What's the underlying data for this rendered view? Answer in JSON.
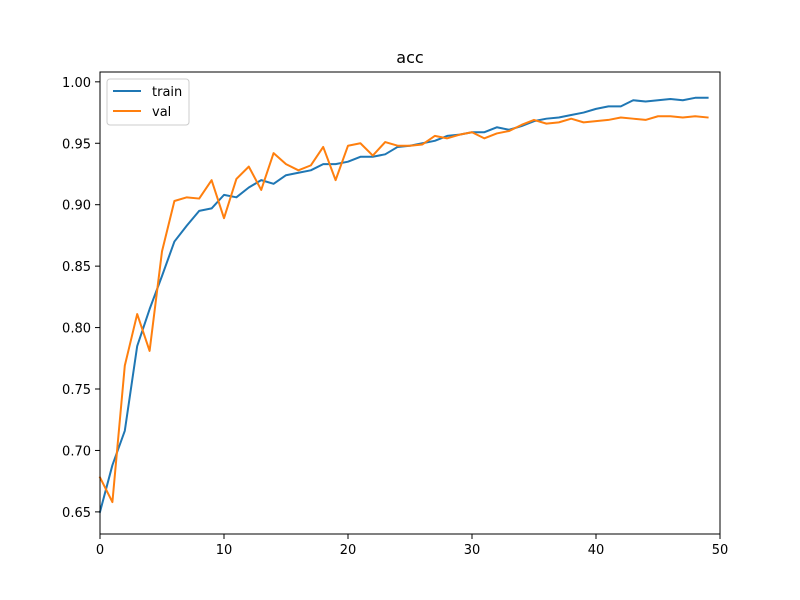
{
  "chart_data": {
    "type": "line",
    "title": "acc",
    "xlabel": "",
    "ylabel": "",
    "xlim": [
      0,
      50
    ],
    "ylim": [
      0.632,
      1.008
    ],
    "xticks": [
      0,
      10,
      20,
      30,
      40,
      50
    ],
    "xtick_labels": [
      "0",
      "10",
      "20",
      "30",
      "40",
      "50"
    ],
    "yticks": [
      0.65,
      0.7,
      0.75,
      0.8,
      0.85,
      0.9,
      0.95,
      1.0
    ],
    "ytick_labels": [
      "0.65",
      "0.70",
      "0.75",
      "0.80",
      "0.85",
      "0.90",
      "0.95",
      "1.00"
    ],
    "grid": false,
    "legend_position": "top-left",
    "x": [
      0,
      1,
      2,
      3,
      4,
      5,
      6,
      7,
      8,
      9,
      10,
      11,
      12,
      13,
      14,
      15,
      16,
      17,
      18,
      19,
      20,
      21,
      22,
      23,
      24,
      25,
      26,
      27,
      28,
      29,
      30,
      31,
      32,
      33,
      34,
      35,
      36,
      37,
      38,
      39,
      40,
      41,
      42,
      43,
      44,
      45,
      46,
      47,
      48,
      49
    ],
    "series": [
      {
        "name": "train",
        "color": "#1f77b4",
        "values": [
          0.65,
          0.688,
          0.716,
          0.785,
          0.815,
          0.842,
          0.87,
          0.883,
          0.895,
          0.897,
          0.908,
          0.906,
          0.914,
          0.92,
          0.917,
          0.924,
          0.926,
          0.928,
          0.933,
          0.933,
          0.935,
          0.939,
          0.939,
          0.941,
          0.947,
          0.948,
          0.95,
          0.952,
          0.956,
          0.957,
          0.959,
          0.959,
          0.963,
          0.961,
          0.964,
          0.968,
          0.97,
          0.971,
          0.973,
          0.975,
          0.978,
          0.98,
          0.98,
          0.985,
          0.984,
          0.985,
          0.986,
          0.985,
          0.987,
          0.987
        ]
      },
      {
        "name": "val",
        "color": "#ff7f0e",
        "values": [
          0.678,
          0.658,
          0.769,
          0.811,
          0.781,
          0.862,
          0.903,
          0.906,
          0.905,
          0.92,
          0.889,
          0.921,
          0.931,
          0.912,
          0.942,
          0.933,
          0.928,
          0.932,
          0.947,
          0.92,
          0.948,
          0.95,
          0.94,
          0.951,
          0.948,
          0.948,
          0.949,
          0.956,
          0.954,
          0.957,
          0.959,
          0.954,
          0.958,
          0.96,
          0.965,
          0.969,
          0.966,
          0.967,
          0.97,
          0.967,
          0.968,
          0.969,
          0.971,
          0.97,
          0.969,
          0.972,
          0.972,
          0.971,
          0.972,
          0.971
        ]
      }
    ]
  }
}
